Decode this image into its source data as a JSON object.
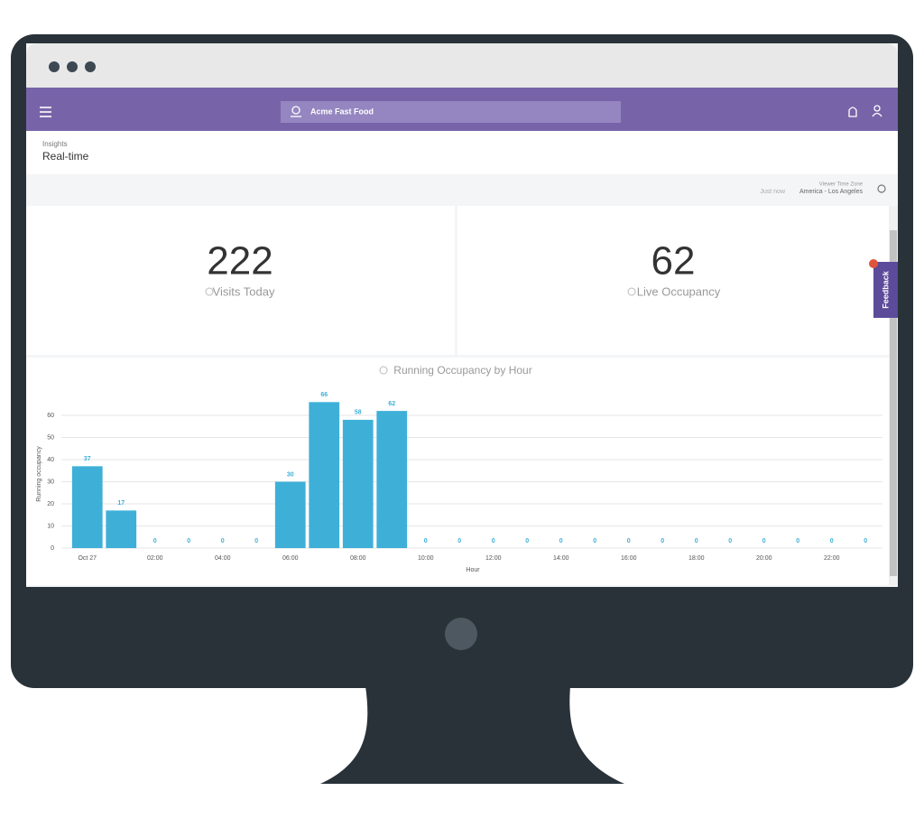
{
  "nav": {
    "location": "Acme Fast Food"
  },
  "header": {
    "section": "Insights",
    "title": "Real-time"
  },
  "toolbar": {
    "timezone_label": "Viewer Time Zone",
    "updated": "Just now",
    "timezone": "America - Los Angeles"
  },
  "kpis": [
    {
      "value": 222,
      "label": "Visits Today"
    },
    {
      "value": 62,
      "label": "Live Occupancy"
    }
  ],
  "feedback": "Feedback",
  "chart_data": {
    "type": "bar",
    "title": "Running Occupancy by Hour",
    "x_label": "Hour",
    "y_label": "Running occupancy",
    "categories": [
      "Oct 27",
      null,
      "02:00",
      null,
      "04:00",
      null,
      "06:00",
      null,
      "08:00",
      null,
      "10:00",
      null,
      "12:00",
      null,
      "14:00",
      null,
      "16:00",
      null,
      "18:00",
      null,
      "20:00",
      null,
      "22:00",
      null
    ],
    "values": [
      37,
      17,
      0,
      0,
      0,
      0,
      30,
      66,
      58,
      62,
      0,
      0,
      0,
      0,
      0,
      0,
      0,
      0,
      0,
      0,
      0,
      0,
      0,
      0
    ],
    "color": "#3eb0d8",
    "ylim": [
      0,
      70
    ],
    "yticks": [
      0,
      10,
      20,
      30,
      40,
      50,
      60
    ],
    "grid": true
  }
}
